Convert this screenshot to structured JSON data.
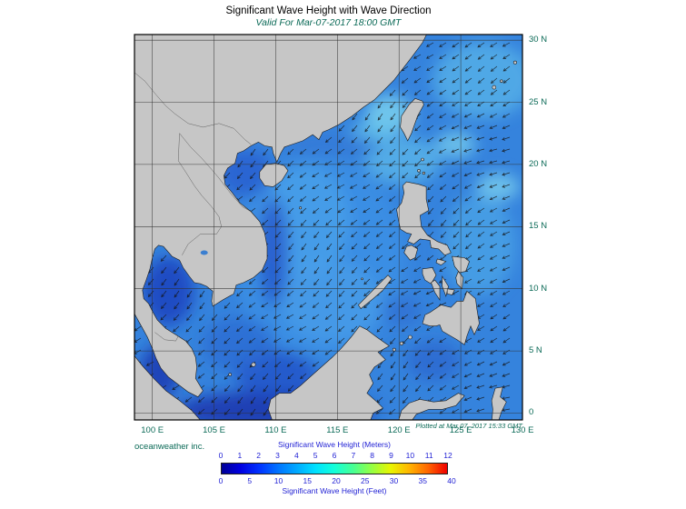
{
  "header": {
    "title": "Significant Wave Height with Wave Direction",
    "subtitle": "Valid For Mar-07-2017 18:00 GMT"
  },
  "map": {
    "lat_labels": [
      "30 N",
      "25 N",
      "20 N",
      "15 N",
      "10 N",
      "5 N",
      "0"
    ],
    "lat_values": [
      30,
      25,
      20,
      15,
      10,
      5,
      0
    ],
    "lon_labels": [
      "100 E",
      "105 E",
      "110 E",
      "115 E",
      "120 E",
      "125 E",
      "130 E"
    ],
    "lon_values": [
      100,
      105,
      110,
      115,
      120,
      125,
      130
    ]
  },
  "footer": {
    "credit": "oceanweather inc.",
    "plotted": "Plotted at Mar 07, 2017 15:33 GMT"
  },
  "legend": {
    "meters_label": "Significant Wave Height (Meters)",
    "feet_label": "Significant Wave Height (Feet)",
    "meters_ticks": [
      "0",
      "1",
      "2",
      "3",
      "4",
      "5",
      "6",
      "7",
      "8",
      "9",
      "10",
      "11",
      "12"
    ],
    "meters_max": 12,
    "feet_ticks": [
      "0",
      "5",
      "10",
      "15",
      "20",
      "25",
      "30",
      "35",
      "40"
    ],
    "feet_values": [
      0,
      5,
      10,
      15,
      20,
      25,
      30,
      35,
      40
    ],
    "colors": [
      "#000096",
      "#0000e1",
      "#0032ff",
      "#0073ff",
      "#00a9ff",
      "#00e1ff",
      "#13ffd9",
      "#47ff94",
      "#96ff42",
      "#e8f500",
      "#ffb400",
      "#ff6400",
      "#f00000"
    ]
  },
  "colors": {
    "text_teal": "#0b6a57",
    "legend_text": "#1f1fd4",
    "land": "#c6c6c6",
    "coastline": "#1c1c1c",
    "ocean_base": "#3583dd",
    "grid": "#303030",
    "frame": "#000000",
    "arrow": "#151515"
  }
}
